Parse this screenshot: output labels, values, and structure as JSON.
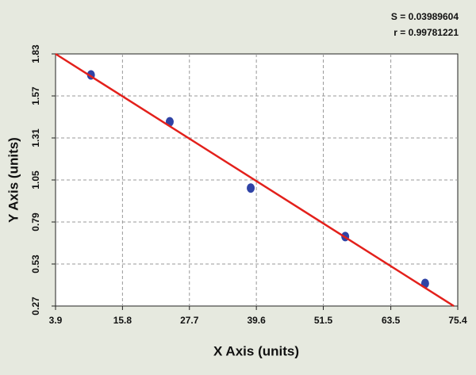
{
  "chart_data": {
    "type": "scatter",
    "annotations": [
      "S = 0.03989604",
      "r = 0.99781221"
    ],
    "xlabel": "X Axis (units)",
    "ylabel": "Y Axis (units)",
    "series": [
      {
        "type": "scatter",
        "color": "#2f43a6",
        "x": [
          10.2,
          24.2,
          38.6,
          55.4,
          69.6
        ],
        "values": [
          1.7,
          1.41,
          1.0,
          0.7,
          0.41
        ]
      },
      {
        "type": "line",
        "color": "#e3201b",
        "x": [
          3.9,
          74.7
        ],
        "values": [
          1.83,
          0.27
        ]
      }
    ],
    "xlim": [
      3.9,
      75.4
    ],
    "xticks": [
      3.9,
      15.8,
      27.7,
      39.6,
      51.5,
      63.5,
      75.4
    ],
    "ylim": [
      0.27,
      1.83
    ],
    "yticks": [
      0.27,
      0.53,
      0.79,
      1.05,
      1.31,
      1.57,
      1.83
    ],
    "grid": true
  }
}
